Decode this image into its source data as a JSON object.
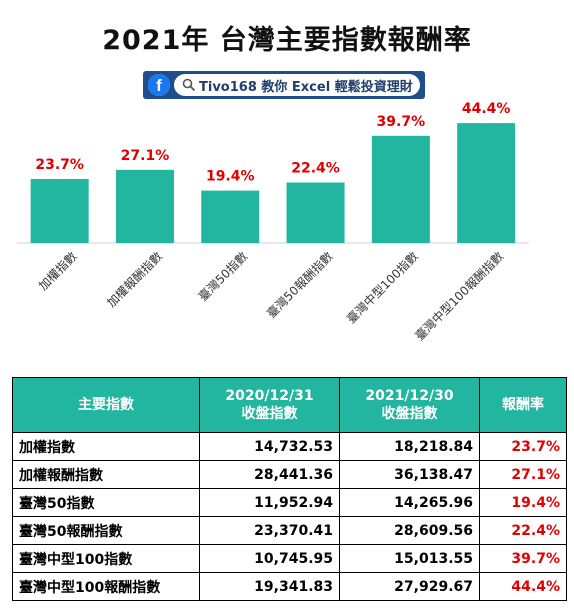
{
  "title": "2021年 台灣主要指數報酬率",
  "banner": {
    "text": "Tivo168 教你 Excel 輕鬆投資理財"
  },
  "colors": {
    "bar": "#22b5a0",
    "value_label": "#e00000",
    "header_bg": "#22b5a0",
    "banner_bg": "#1f4f8a"
  },
  "chart_data": {
    "type": "bar",
    "categories": [
      "加權指數",
      "加權報酬指數",
      "臺灣50指數",
      "臺灣50報酬指數",
      "臺灣中型100指數",
      "臺灣中型100報酬指數"
    ],
    "values": [
      23.7,
      27.1,
      19.4,
      22.4,
      39.7,
      44.4
    ],
    "value_labels": [
      "23.7%",
      "27.1%",
      "19.4%",
      "22.4%",
      "39.7%",
      "44.4%"
    ],
    "ylim": [
      0,
      50
    ],
    "grid": false,
    "legend": "none"
  },
  "table": {
    "headers": [
      {
        "line1": "主要指數",
        "line2": ""
      },
      {
        "line1": "2020/12/31",
        "line2": "收盤指數"
      },
      {
        "line1": "2021/12/30",
        "line2": "收盤指數"
      },
      {
        "line1": "報酬率",
        "line2": ""
      }
    ],
    "rows": [
      {
        "name": "加權指數",
        "close2020": "14,732.53",
        "close2021": "18,218.84",
        "ret": "23.7%"
      },
      {
        "name": "加權報酬指數",
        "close2020": "28,441.36",
        "close2021": "36,138.47",
        "ret": "27.1%"
      },
      {
        "name": "臺灣50指數",
        "close2020": "11,952.94",
        "close2021": "14,265.96",
        "ret": "19.4%"
      },
      {
        "name": "臺灣50報酬指數",
        "close2020": "23,370.41",
        "close2021": "28,609.56",
        "ret": "22.4%"
      },
      {
        "name": "臺灣中型100指數",
        "close2020": "10,745.95",
        "close2021": "15,013.55",
        "ret": "39.7%"
      },
      {
        "name": "臺灣中型100報酬指數",
        "close2020": "19,341.83",
        "close2021": "27,929.67",
        "ret": "44.4%"
      }
    ]
  }
}
